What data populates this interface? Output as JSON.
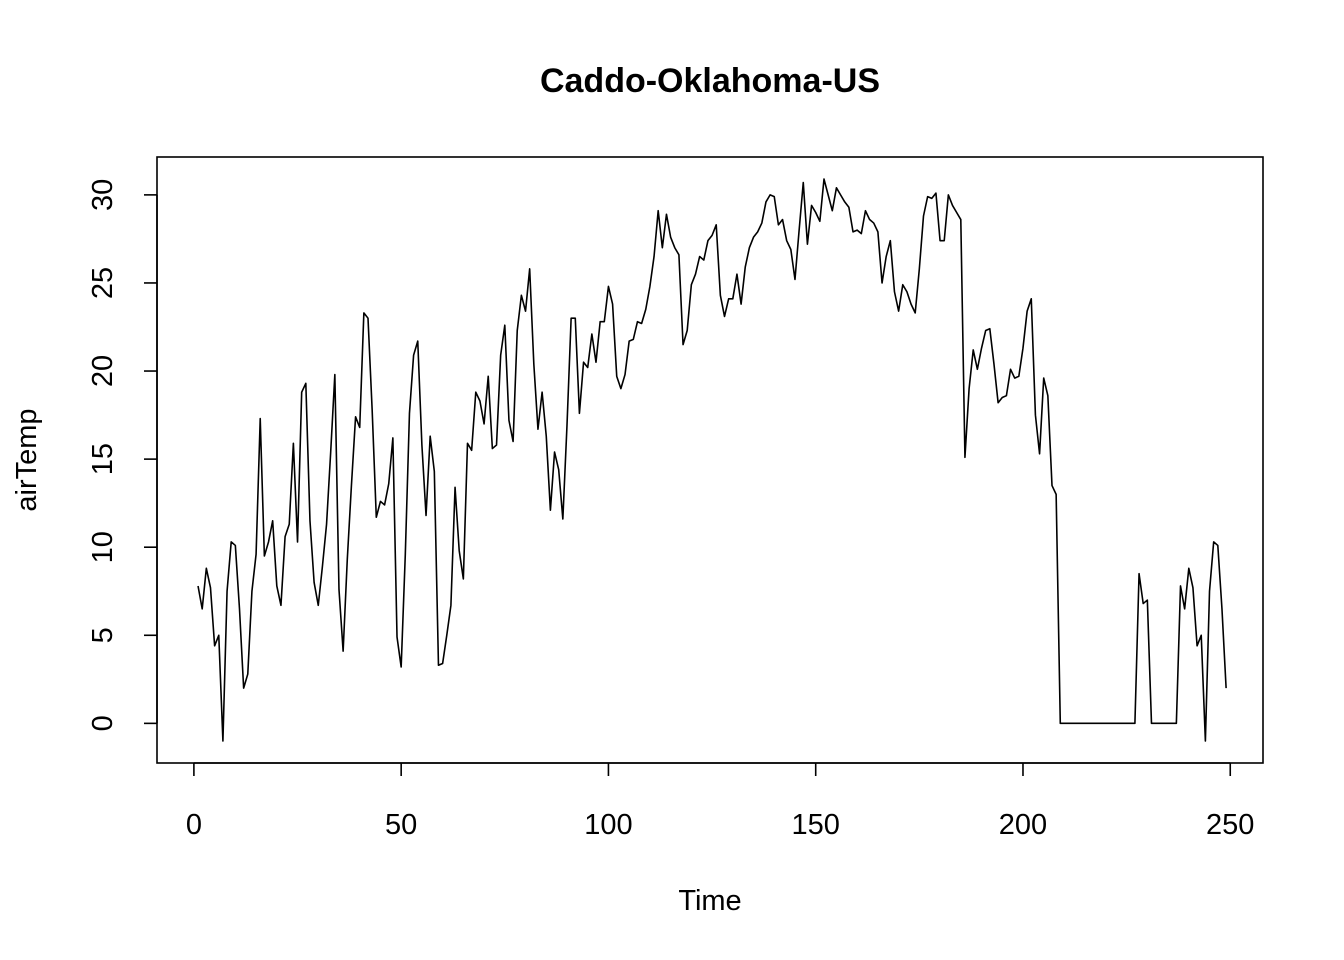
{
  "chart_data": {
    "type": "line",
    "title": "Caddo-Oklahoma-US",
    "xlabel": "Time",
    "ylabel": "airTemp",
    "xlim": [
      -8.9,
      257.9
    ],
    "ylim": [
      -2.25,
      32.15
    ],
    "x_ticks": [
      0,
      50,
      100,
      150,
      200,
      250
    ],
    "y_ticks": [
      0,
      5,
      10,
      15,
      20,
      25,
      30
    ],
    "x_tick_labels": [
      "0",
      "50",
      "100",
      "150",
      "200",
      "250"
    ],
    "y_tick_labels": [
      "0",
      "5",
      "10",
      "15",
      "20",
      "25",
      "30"
    ],
    "grid": false,
    "series": [
      {
        "x_start": 1,
        "x_step": 1,
        "values": [
          7.8,
          6.5,
          8.8,
          7.7,
          4.4,
          5.0,
          -1.0,
          7.5,
          10.3,
          10.1,
          6.5,
          2.0,
          2.8,
          7.5,
          9.6,
          17.3,
          9.5,
          10.3,
          11.5,
          7.8,
          6.7,
          10.6,
          11.3,
          15.9,
          10.3,
          18.8,
          19.3,
          11.5,
          8.0,
          6.7,
          8.9,
          11.3,
          15.4,
          19.8,
          7.6,
          4.1,
          9.3,
          13.5,
          17.4,
          16.8,
          23.3,
          23.0,
          17.8,
          11.7,
          12.6,
          12.4,
          13.6,
          16.2,
          4.9,
          3.2,
          9.6,
          17.6,
          20.9,
          21.7,
          15.8,
          11.8,
          16.3,
          14.3,
          3.3,
          3.4,
          5.0,
          6.7,
          13.4,
          9.8,
          8.2,
          15.9,
          15.5,
          18.8,
          18.3,
          17.0,
          19.7,
          15.6,
          15.8,
          20.9,
          22.6,
          17.2,
          16.0,
          22.3,
          24.3,
          23.4,
          25.8,
          20.4,
          16.7,
          18.8,
          16.3,
          12.1,
          15.4,
          14.4,
          11.6,
          16.9,
          23.0,
          23.0,
          17.6,
          20.5,
          20.2,
          22.1,
          20.5,
          22.8,
          22.8,
          24.8,
          23.8,
          19.7,
          19.0,
          19.8,
          21.7,
          21.8,
          22.8,
          22.7,
          23.5,
          24.8,
          26.5,
          29.1,
          27.0,
          28.9,
          27.6,
          27.0,
          26.6,
          21.5,
          22.3,
          24.9,
          25.5,
          26.5,
          26.3,
          27.4,
          27.7,
          28.3,
          24.3,
          23.1,
          24.1,
          24.1,
          25.5,
          23.8,
          25.9,
          27.0,
          27.6,
          27.9,
          28.4,
          29.6,
          30.0,
          29.9,
          28.3,
          28.6,
          27.4,
          26.9,
          25.2,
          28.0,
          30.7,
          27.2,
          29.4,
          29.0,
          28.5,
          30.9,
          30.0,
          29.1,
          30.4,
          30.0,
          29.6,
          29.3,
          27.9,
          28.0,
          27.8,
          29.1,
          28.6,
          28.4,
          27.9,
          25.0,
          26.5,
          27.4,
          24.5,
          23.4,
          24.9,
          24.5,
          23.8,
          23.3,
          25.8,
          28.8,
          29.9,
          29.8,
          30.1,
          27.4,
          27.4,
          30.0,
          29.4,
          29.0,
          28.6,
          15.1,
          19.0,
          21.2,
          20.1,
          21.3,
          22.3,
          22.4,
          20.4,
          18.2,
          18.5,
          18.6,
          20.1,
          19.6,
          19.7,
          21.3,
          23.4,
          24.1,
          17.5,
          15.3,
          19.6,
          18.6,
          13.5,
          13.0,
          0.0,
          0.0,
          0.0,
          0.0,
          0.0,
          0.0,
          0.0,
          0.0,
          0.0,
          0.0,
          0.0,
          0.0,
          0.0,
          0.0,
          0.0,
          0.0,
          0.0,
          0.0,
          0.0,
          8.5,
          6.8,
          7.0,
          0.0,
          0.0,
          0.0,
          0.0,
          0.0,
          0.0,
          0.0,
          7.8,
          6.5,
          8.8,
          7.7,
          4.4,
          5.0,
          -1.0,
          7.5,
          10.3,
          10.1,
          6.5,
          2.0
        ]
      }
    ]
  }
}
